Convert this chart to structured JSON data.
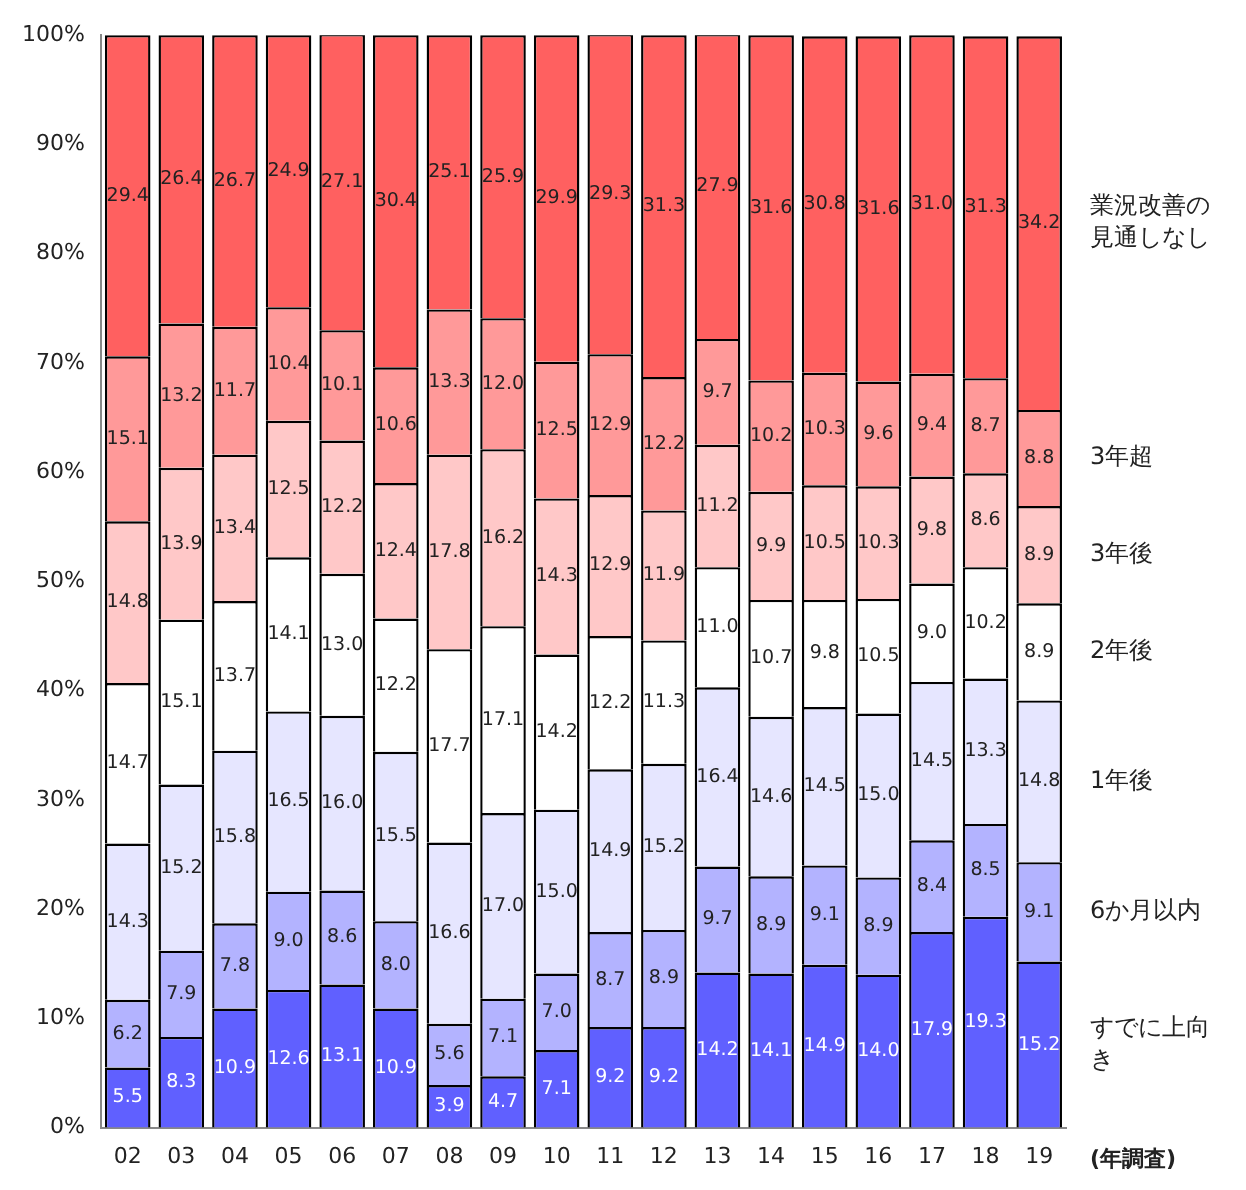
{
  "chart_data": {
    "type": "bar",
    "stacked": true,
    "categories": [
      "02",
      "03",
      "04",
      "05",
      "06",
      "07",
      "08",
      "09",
      "10",
      "11",
      "12",
      "13",
      "14",
      "15",
      "16",
      "17",
      "18",
      "19"
    ],
    "xlabel": "(年調査)",
    "series": [
      {
        "name": "すでに上向き",
        "color": "#6060ff",
        "values": [
          5.5,
          8.3,
          10.9,
          12.6,
          13.1,
          10.9,
          3.9,
          4.7,
          7.1,
          9.2,
          9.2,
          14.2,
          14.1,
          14.9,
          14.0,
          17.9,
          19.3,
          15.2
        ],
        "value_labels": [
          "5.5",
          "8.3",
          "10.9",
          "12.6",
          "13.1",
          "10.9",
          "3.9",
          "4.7",
          "7.1",
          "9.2",
          "9.2",
          "14.2",
          "14.1",
          "14.9",
          "14.0",
          "17.9",
          "19.3",
          "15.2"
        ]
      },
      {
        "name": "6か月以内",
        "color": "#b3b3ff",
        "values": [
          6.2,
          7.9,
          7.8,
          9.0,
          8.6,
          8.0,
          5.6,
          7.1,
          7.0,
          8.7,
          8.9,
          9.7,
          8.9,
          9.1,
          8.9,
          8.4,
          8.5,
          9.1
        ],
        "value_labels": [
          "6.2",
          "7.9",
          "7.8",
          "9.0",
          "8.6",
          "8.0",
          "5.6",
          "7.1",
          "7.0",
          "8.7",
          "8.9",
          "9.7",
          "8.9",
          "9.1",
          "8.9",
          "8.4",
          "8.5",
          "9.1"
        ]
      },
      {
        "name": "1年後",
        "color": "#e6e6ff",
        "values": [
          14.3,
          15.2,
          15.8,
          16.5,
          16.0,
          15.5,
          16.6,
          17.0,
          15.0,
          14.9,
          15.2,
          16.4,
          14.6,
          14.5,
          15.0,
          14.5,
          13.3,
          14.8
        ],
        "value_labels": [
          "14.3",
          "15.2",
          "15.8",
          "16.5",
          "16.0",
          "15.5",
          "16.6",
          "17.0",
          "15.0",
          "14.9",
          "15.2",
          "16.4",
          "14.6",
          "14.5",
          "15.0",
          "14.5",
          "13.3",
          "14.8"
        ]
      },
      {
        "name": "2年後",
        "color": "#ffffff",
        "values": [
          14.7,
          15.1,
          13.7,
          14.1,
          13.0,
          12.2,
          17.7,
          17.1,
          14.2,
          12.2,
          11.3,
          11.0,
          10.7,
          9.8,
          10.5,
          9.0,
          10.2,
          8.9
        ],
        "value_labels": [
          "14.7",
          "15.1",
          "13.7",
          "14.1",
          "13.0",
          "12.2",
          "17.7",
          "17.1",
          "14.2",
          "12.2",
          "11.3",
          "11.0",
          "10.7",
          "9.8",
          "10.5",
          "9.0",
          "10.2",
          "8.9"
        ]
      },
      {
        "name": "3年後",
        "color": "#ffc8c8",
        "values": [
          14.8,
          13.9,
          13.4,
          12.5,
          12.2,
          12.4,
          17.8,
          16.2,
          14.3,
          12.9,
          11.9,
          11.2,
          9.9,
          10.5,
          10.3,
          9.8,
          8.6,
          8.9
        ],
        "value_labels": [
          "14.8",
          "13.9",
          "13.4",
          "12.5",
          "12.2",
          "12.4",
          "17.8",
          "16.2",
          "14.3",
          "12.9",
          "11.9",
          "11.2",
          "9.9",
          "10.5",
          "10.3",
          "9.8",
          "8.6",
          "8.9"
        ]
      },
      {
        "name": "3年超",
        "color": "#ff9999",
        "values": [
          15.1,
          13.2,
          11.7,
          10.4,
          10.1,
          10.6,
          13.3,
          12.0,
          12.5,
          12.9,
          12.2,
          9.7,
          10.2,
          10.3,
          9.6,
          9.4,
          8.7,
          8.8
        ],
        "value_labels": [
          "15.1",
          "13.2",
          "11.7",
          "10.4",
          "10.1",
          "10.6",
          "13.3",
          "12.0",
          "12.5",
          "12.9",
          "12.2",
          "9.7",
          "10.2",
          "10.3",
          "9.6",
          "9.4",
          "8.7",
          "8.8"
        ]
      },
      {
        "name": "業況改善の見通しなし",
        "color": "#ff6060",
        "values": [
          29.4,
          26.4,
          26.7,
          24.9,
          27.1,
          30.4,
          25.1,
          25.9,
          29.9,
          29.3,
          31.3,
          27.9,
          31.6,
          30.8,
          31.6,
          31.0,
          31.3,
          34.2
        ],
        "value_labels": [
          "29.4",
          "26.4",
          "26.7",
          "24.9",
          "27.1",
          "30.4",
          "25.1",
          "25.9",
          "29.9",
          "29.3",
          "31.3",
          "27.9",
          "31.6",
          "30.8",
          "31.6",
          "31.0",
          "31.3",
          "34.2"
        ]
      }
    ],
    "ylim": [
      0,
      100
    ],
    "yticks": [
      {
        "value": 0,
        "label": "0%"
      },
      {
        "value": 10,
        "label": "10%"
      },
      {
        "value": 20,
        "label": "20%"
      },
      {
        "value": 30,
        "label": "30%"
      },
      {
        "value": 40,
        "label": "40%"
      },
      {
        "value": 50,
        "label": "50%"
      },
      {
        "value": 60,
        "label": "60%"
      },
      {
        "value": 70,
        "label": "70%"
      },
      {
        "value": 80,
        "label": "80%"
      },
      {
        "value": 90,
        "label": "90%"
      },
      {
        "value": 100,
        "label": "100%"
      }
    ],
    "grid": false,
    "legend": false
  }
}
